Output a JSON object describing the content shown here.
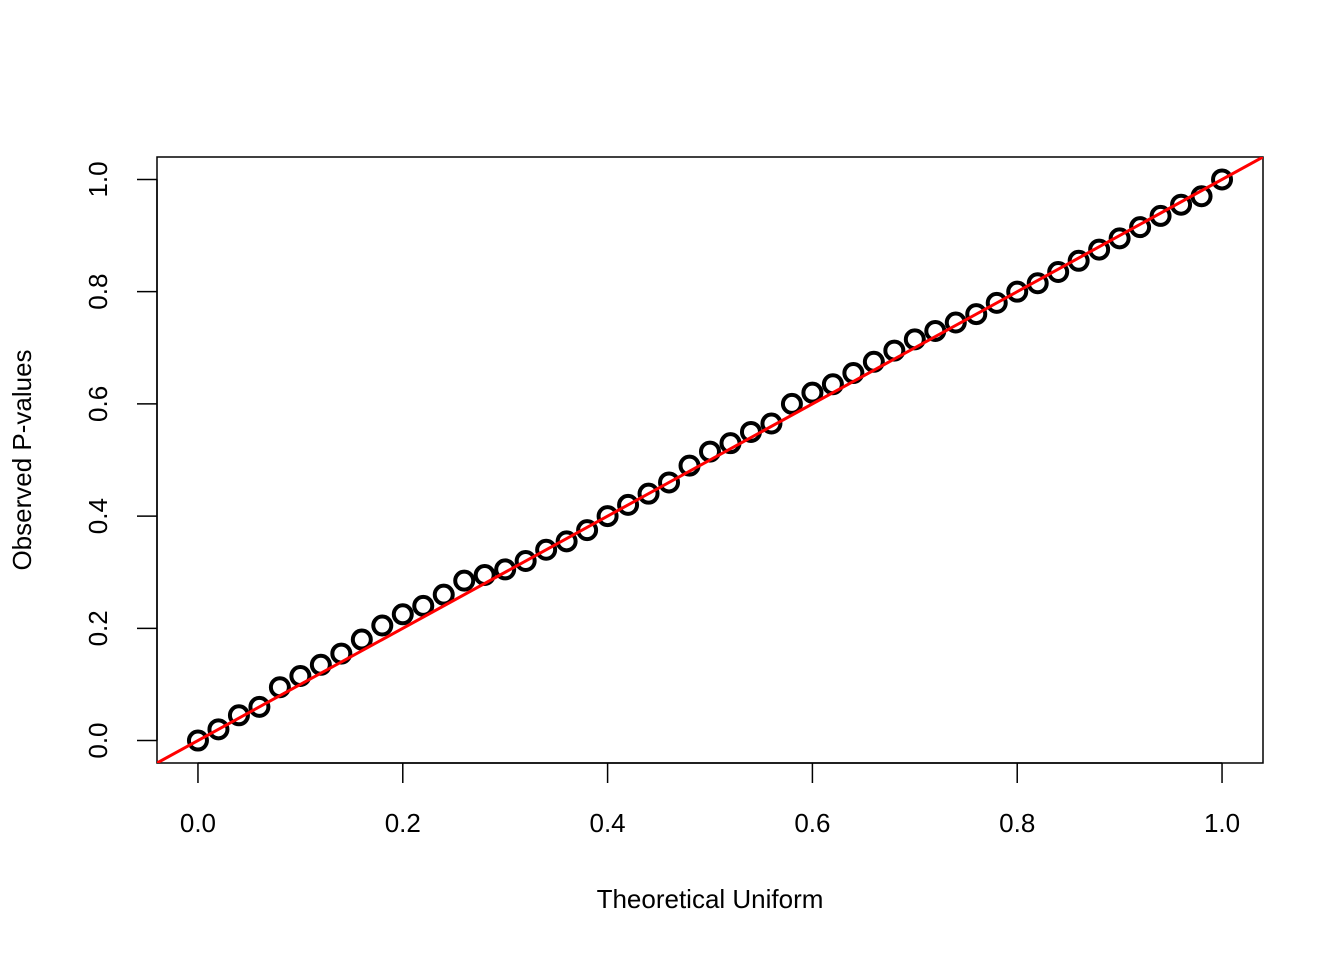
{
  "chart_data": {
    "type": "scatter",
    "x_label": "Theoretical Uniform",
    "y_label": "Observed P-values",
    "x": [
      0,
      0.02,
      0.04,
      0.06,
      0.08,
      0.1,
      0.12,
      0.14,
      0.16,
      0.18,
      0.2,
      0.22,
      0.24,
      0.26,
      0.28,
      0.3,
      0.32,
      0.34,
      0.36,
      0.38,
      0.4,
      0.42,
      0.44,
      0.46,
      0.48,
      0.5,
      0.52,
      0.54,
      0.56,
      0.58,
      0.6,
      0.62,
      0.64,
      0.66,
      0.68,
      0.7,
      0.72,
      0.74,
      0.76,
      0.78,
      0.8,
      0.82,
      0.84,
      0.86,
      0.88,
      0.9,
      0.92,
      0.94,
      0.96,
      0.98,
      1
    ],
    "values": [
      0,
      0.02,
      0.045,
      0.06,
      0.095,
      0.115,
      0.135,
      0.155,
      0.18,
      0.205,
      0.225,
      0.24,
      0.26,
      0.285,
      0.295,
      0.305,
      0.32,
      0.34,
      0.355,
      0.375,
      0.4,
      0.42,
      0.44,
      0.46,
      0.49,
      0.515,
      0.53,
      0.55,
      0.565,
      0.6,
      0.62,
      0.635,
      0.655,
      0.675,
      0.695,
      0.715,
      0.73,
      0.745,
      0.76,
      0.78,
      0.8,
      0.815,
      0.835,
      0.855,
      0.875,
      0.895,
      0.915,
      0.935,
      0.955,
      0.97,
      1
    ],
    "color": "#000000",
    "reference_line": {
      "slope": 1,
      "intercept": 0,
      "color": "#ff0000"
    },
    "xlim": [
      -0.04,
      1.04
    ],
    "ylim": [
      -0.04,
      1.04
    ],
    "xticks": [
      {
        "value": 0,
        "label": "0.0"
      },
      0.2,
      0.4,
      0.6,
      0.8,
      {
        "value": 1,
        "label": "1.0"
      }
    ],
    "yticks": [
      {
        "value": 0,
        "label": "0.0"
      },
      0.2,
      0.4,
      0.6,
      0.8,
      {
        "value": 1,
        "label": "1.0"
      }
    ]
  }
}
